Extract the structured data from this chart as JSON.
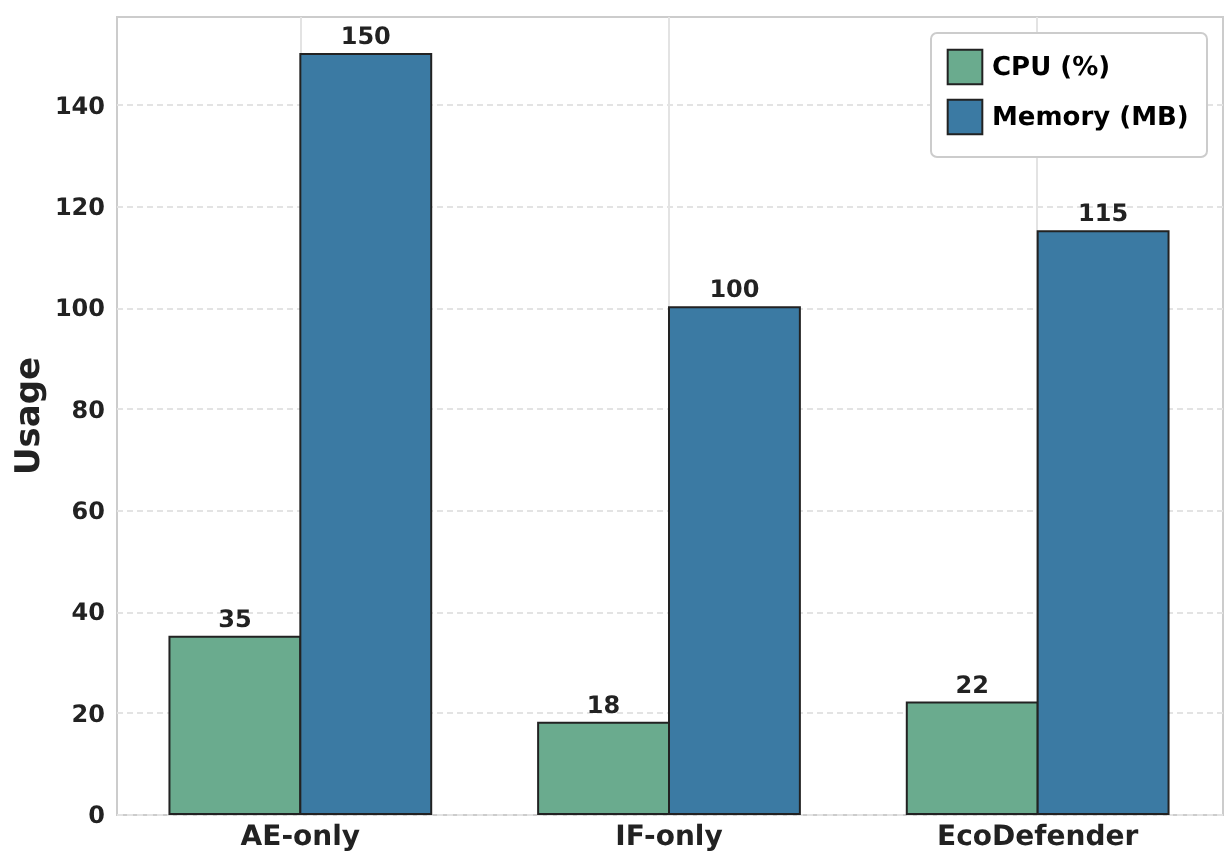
{
  "chart_data": {
    "type": "bar",
    "ylabel": "Usage",
    "categories": [
      "AE-only",
      "IF-only",
      "EcoDefender"
    ],
    "series": [
      {
        "name": "CPU (%)",
        "color": "#6aab8e",
        "values": [
          35,
          18,
          22
        ]
      },
      {
        "name": "Memory (MB)",
        "color": "#3b7aa3",
        "values": [
          150,
          100,
          115
        ]
      }
    ],
    "ylim": [
      0,
      157.5
    ],
    "yticks": [
      0,
      20,
      40,
      60,
      80,
      100,
      120,
      140
    ],
    "grid": true,
    "legend": "top right",
    "data_labels": true
  }
}
